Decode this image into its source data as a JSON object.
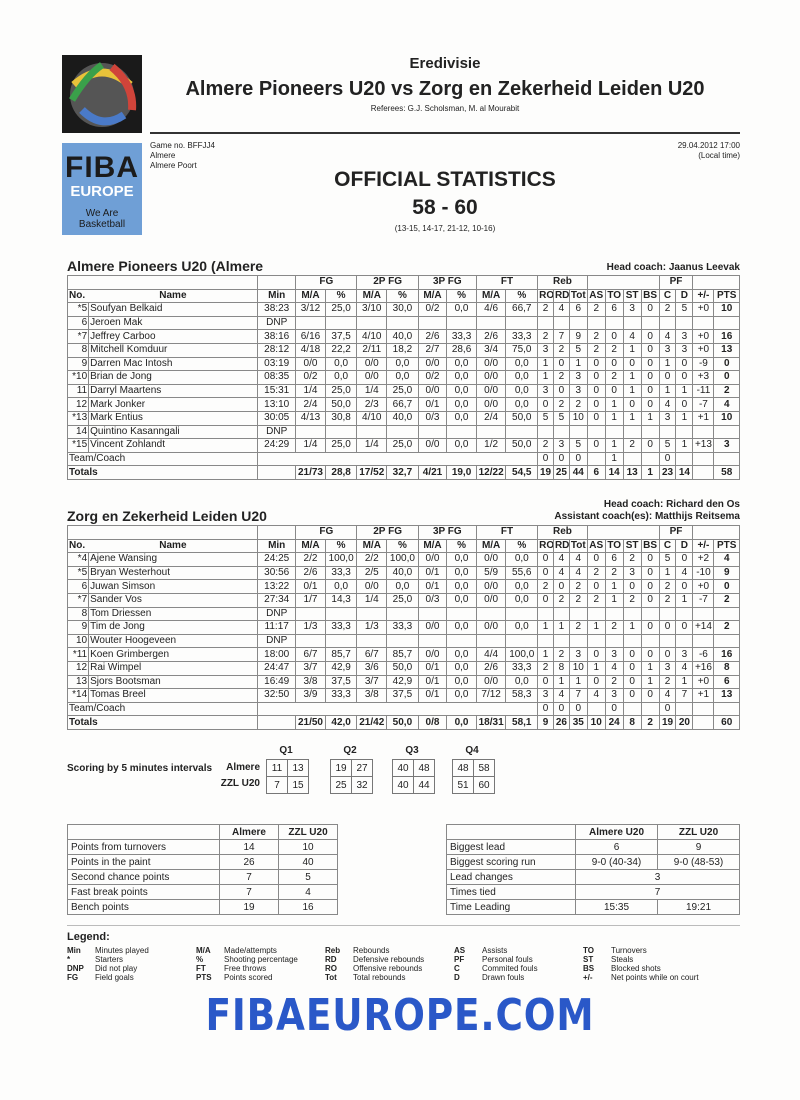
{
  "header": {
    "league": "Eredivisie",
    "title": "Almere Pioneers U20 vs Zorg en Zekerheid Leiden U20",
    "referees": "Referees: G.J. Scholsman, M. al Mourabit",
    "game_no": "Game no. BFFJJ4",
    "city": "Almere",
    "venue": "Almere Poort",
    "datetime": "29.04.2012 17:00",
    "local_time": "(Local time)",
    "heading": "OFFICIAL STATISTICS",
    "score": "58 - 60",
    "quarters": "(13-15, 14-17, 21-12, 10-16)"
  },
  "logo": {
    "fiba": "FIBA",
    "europe": "EUROPE",
    "tagline": "We Are Basketball",
    "footer": "FIBAEUROPE.COM"
  },
  "columns": {
    "no": "No.",
    "name": "Name",
    "min": "Min",
    "fg": "FG",
    "p2": "2P FG",
    "p3": "3P FG",
    "ft": "FT",
    "reb": "Reb",
    "pf": "PF",
    "ma": "M/A",
    "pct": "%",
    "ro": "RO",
    "rd": "RD",
    "tot": "Tot",
    "as": "AS",
    "to": "TO",
    "st": "ST",
    "bs": "BS",
    "c": "C",
    "d": "D",
    "pm": "+/-",
    "pts": "PTS"
  },
  "teams": [
    {
      "name": "Almere Pioneers U20 (Almere",
      "head_coach": "Head coach: Jaanus Leevak",
      "assistant": "",
      "rows": [
        [
          "*5",
          "Soufyan Belkaid",
          "38:23",
          "3/12",
          "25,0",
          "3/10",
          "30,0",
          "0/2",
          "0,0",
          "4/6",
          "66,7",
          "2",
          "4",
          "6",
          "2",
          "6",
          "3",
          "0",
          "2",
          "5",
          "+0",
          "10"
        ],
        [
          "6",
          "Jeroen Mak",
          "DNP"
        ],
        [
          "*7",
          "Jeffrey Carboo",
          "38:16",
          "6/16",
          "37,5",
          "4/10",
          "40,0",
          "2/6",
          "33,3",
          "2/6",
          "33,3",
          "2",
          "7",
          "9",
          "2",
          "0",
          "4",
          "0",
          "4",
          "3",
          "+0",
          "16"
        ],
        [
          "8",
          "Mitchell Komduur",
          "28:12",
          "4/18",
          "22,2",
          "2/11",
          "18,2",
          "2/7",
          "28,6",
          "3/4",
          "75,0",
          "3",
          "2",
          "5",
          "2",
          "2",
          "1",
          "0",
          "3",
          "3",
          "+0",
          "13"
        ],
        [
          "9",
          "Darren Mac Intosh",
          "03:19",
          "0/0",
          "0,0",
          "0/0",
          "0,0",
          "0/0",
          "0,0",
          "0/0",
          "0,0",
          "1",
          "0",
          "1",
          "0",
          "0",
          "0",
          "0",
          "1",
          "0",
          "-9",
          "0"
        ],
        [
          "*10",
          "Brian de Jong",
          "08:35",
          "0/2",
          "0,0",
          "0/0",
          "0,0",
          "0/2",
          "0,0",
          "0/0",
          "0,0",
          "1",
          "2",
          "3",
          "0",
          "2",
          "1",
          "0",
          "0",
          "0",
          "+3",
          "0"
        ],
        [
          "11",
          "Darryl Maartens",
          "15:31",
          "1/4",
          "25,0",
          "1/4",
          "25,0",
          "0/0",
          "0,0",
          "0/0",
          "0,0",
          "3",
          "0",
          "3",
          "0",
          "0",
          "1",
          "0",
          "1",
          "1",
          "-11",
          "2"
        ],
        [
          "12",
          "Mark Jonker",
          "13:10",
          "2/4",
          "50,0",
          "2/3",
          "66,7",
          "0/1",
          "0,0",
          "0/0",
          "0,0",
          "0",
          "2",
          "2",
          "0",
          "1",
          "0",
          "0",
          "4",
          "0",
          "-7",
          "4"
        ],
        [
          "*13",
          "Mark Entius",
          "30:05",
          "4/13",
          "30,8",
          "4/10",
          "40,0",
          "0/3",
          "0,0",
          "2/4",
          "50,0",
          "5",
          "5",
          "10",
          "0",
          "1",
          "1",
          "1",
          "3",
          "1",
          "+1",
          "10"
        ],
        [
          "14",
          "Quintino Kasanngali",
          "DNP"
        ],
        [
          "*15",
          "Vincent Zohlandt",
          "24:29",
          "1/4",
          "25,0",
          "1/4",
          "25,0",
          "0/0",
          "0,0",
          "1/2",
          "50,0",
          "2",
          "3",
          "5",
          "0",
          "1",
          "2",
          "0",
          "5",
          "1",
          "+13",
          "3"
        ]
      ],
      "team_coach": {
        "label": "Team/Coach",
        "ro": "0",
        "rd": "0",
        "tot": "0",
        "to": "1",
        "c": "0"
      },
      "totals": [
        "Totals",
        "21/73",
        "28,8",
        "17/52",
        "32,7",
        "4/21",
        "19,0",
        "12/22",
        "54,5",
        "19",
        "25",
        "44",
        "6",
        "14",
        "13",
        "1",
        "23",
        "14",
        "",
        "58"
      ]
    },
    {
      "name": "Zorg en Zekerheid Leiden U20",
      "head_coach": "Head coach: Richard den Os",
      "assistant": "Assistant coach(es): Matthijs Reitsema",
      "rows": [
        [
          "*4",
          "Ajene Wansing",
          "24:25",
          "2/2",
          "100,0",
          "2/2",
          "100,0",
          "0/0",
          "0,0",
          "0/0",
          "0,0",
          "0",
          "4",
          "4",
          "0",
          "6",
          "2",
          "0",
          "5",
          "0",
          "+2",
          "4"
        ],
        [
          "*5",
          "Bryan Westerhout",
          "30:56",
          "2/6",
          "33,3",
          "2/5",
          "40,0",
          "0/1",
          "0,0",
          "5/9",
          "55,6",
          "0",
          "4",
          "4",
          "2",
          "2",
          "3",
          "0",
          "1",
          "4",
          "-10",
          "9"
        ],
        [
          "6",
          "Juwan Simson",
          "13:22",
          "0/1",
          "0,0",
          "0/0",
          "0,0",
          "0/1",
          "0,0",
          "0/0",
          "0,0",
          "2",
          "0",
          "2",
          "0",
          "1",
          "0",
          "0",
          "2",
          "0",
          "+0",
          "0"
        ],
        [
          "*7",
          "Sander Vos",
          "27:34",
          "1/7",
          "14,3",
          "1/4",
          "25,0",
          "0/3",
          "0,0",
          "0/0",
          "0,0",
          "0",
          "2",
          "2",
          "2",
          "1",
          "2",
          "0",
          "2",
          "1",
          "-7",
          "2"
        ],
        [
          "8",
          "Tom Driessen",
          "DNP"
        ],
        [
          "9",
          "Tim de Jong",
          "11:17",
          "1/3",
          "33,3",
          "1/3",
          "33,3",
          "0/0",
          "0,0",
          "0/0",
          "0,0",
          "1",
          "1",
          "2",
          "1",
          "2",
          "1",
          "0",
          "0",
          "0",
          "+14",
          "2"
        ],
        [
          "10",
          "Wouter Hoogeveen",
          "DNP"
        ],
        [
          "*11",
          "Koen Grimbergen",
          "18:00",
          "6/7",
          "85,7",
          "6/7",
          "85,7",
          "0/0",
          "0,0",
          "4/4",
          "100,0",
          "1",
          "2",
          "3",
          "0",
          "3",
          "0",
          "0",
          "0",
          "3",
          "-6",
          "16"
        ],
        [
          "12",
          "Rai Wimpel",
          "24:47",
          "3/7",
          "42,9",
          "3/6",
          "50,0",
          "0/1",
          "0,0",
          "2/6",
          "33,3",
          "2",
          "8",
          "10",
          "1",
          "4",
          "0",
          "1",
          "3",
          "4",
          "+16",
          "8"
        ],
        [
          "13",
          "Sjors Bootsman",
          "16:49",
          "3/8",
          "37,5",
          "3/7",
          "42,9",
          "0/1",
          "0,0",
          "0/0",
          "0,0",
          "0",
          "1",
          "1",
          "0",
          "2",
          "0",
          "1",
          "2",
          "1",
          "+0",
          "6"
        ],
        [
          "*14",
          "Tomas Breel",
          "32:50",
          "3/9",
          "33,3",
          "3/8",
          "37,5",
          "0/1",
          "0,0",
          "7/12",
          "58,3",
          "3",
          "4",
          "7",
          "4",
          "3",
          "0",
          "0",
          "4",
          "7",
          "+1",
          "13"
        ]
      ],
      "team_coach": {
        "label": "Team/Coach",
        "ro": "0",
        "rd": "0",
        "tot": "0",
        "to": "0",
        "c": "0"
      },
      "totals": [
        "Totals",
        "21/50",
        "42,0",
        "21/42",
        "50,0",
        "0/8",
        "0,0",
        "18/31",
        "58,1",
        "9",
        "26",
        "35",
        "10",
        "24",
        "8",
        "2",
        "19",
        "20",
        "",
        "60"
      ]
    }
  ],
  "scoring": {
    "label": "Scoring by 5 minutes intervals",
    "quarters": [
      "Q1",
      "Q2",
      "Q3",
      "Q4"
    ],
    "teams": [
      "Almere",
      "ZZL U20"
    ],
    "values": [
      [
        [
          "11",
          "13"
        ],
        [
          "19",
          "27"
        ],
        [
          "40",
          "48"
        ],
        [
          "48",
          "58"
        ]
      ],
      [
        [
          "7",
          "15"
        ],
        [
          "25",
          "32"
        ],
        [
          "40",
          "44"
        ],
        [
          "51",
          "60"
        ]
      ]
    ]
  },
  "points_table": {
    "headers": [
      "",
      "Almere",
      "ZZL U20"
    ],
    "rows": [
      [
        "Points from turnovers",
        "14",
        "10"
      ],
      [
        "Points in the paint",
        "26",
        "40"
      ],
      [
        "Second chance points",
        "7",
        "5"
      ],
      [
        "Fast break points",
        "7",
        "4"
      ],
      [
        "Bench points",
        "19",
        "16"
      ]
    ]
  },
  "lead_table": {
    "headers": [
      "",
      "Almere U20",
      "ZZL U20"
    ],
    "rows": [
      [
        "Biggest lead",
        "6",
        "9"
      ],
      [
        "Biggest scoring run",
        "9-0 (40-34)",
        "9-0 (48-53)"
      ],
      [
        "Lead changes",
        "3"
      ],
      [
        "Times tied",
        "7"
      ],
      [
        "Time Leading",
        "15:35",
        "19:21"
      ]
    ]
  },
  "legend": {
    "title": "Legend:",
    "items": [
      [
        "Min",
        "Minutes played"
      ],
      [
        "*",
        "Starters"
      ],
      [
        "DNP",
        "Did not play"
      ],
      [
        "FG",
        "Field goals"
      ],
      [
        "M/A",
        "Made/attempts"
      ],
      [
        "%",
        "Shooting percentage"
      ],
      [
        "FT",
        "Free throws"
      ],
      [
        "PTS",
        "Points scored"
      ],
      [
        "Reb",
        "Rebounds"
      ],
      [
        "RD",
        "Defensive rebounds"
      ],
      [
        "RO",
        "Offensive rebounds"
      ],
      [
        "Tot",
        "Total rebounds"
      ],
      [
        "AS",
        "Assists"
      ],
      [
        "PF",
        "Personal fouls"
      ],
      [
        "C",
        "Commited fouls"
      ],
      [
        "D",
        "Drawn fouls"
      ],
      [
        "TO",
        "Turnovers"
      ],
      [
        "ST",
        "Steals"
      ],
      [
        "BS",
        "Blocked shots"
      ],
      [
        "+/-",
        "Net points while on court"
      ]
    ]
  }
}
